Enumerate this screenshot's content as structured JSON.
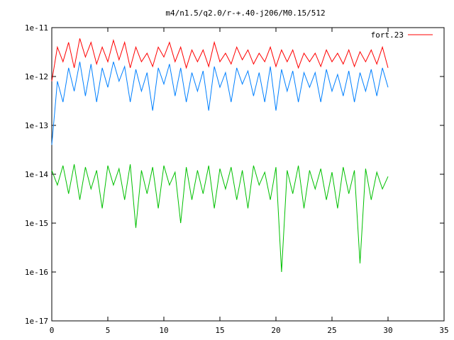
{
  "chart_data": {
    "type": "line",
    "title": "m4/n1.5/q2.0/r-+.40-j206/M0.15/512",
    "xlabel": "",
    "ylabel": "",
    "xlim": [
      0,
      35
    ],
    "ylim": [
      1e-17,
      1e-11
    ],
    "yscale": "log",
    "grid": false,
    "legend_position": "top-right",
    "x_ticks": [
      {
        "value": 0,
        "label": "0"
      },
      {
        "value": 5,
        "label": "5"
      },
      {
        "value": 10,
        "label": "10"
      },
      {
        "value": 15,
        "label": "15"
      },
      {
        "value": 20,
        "label": "20"
      },
      {
        "value": 25,
        "label": "25"
      },
      {
        "value": 30,
        "label": "30"
      },
      {
        "value": 35,
        "label": "35"
      }
    ],
    "y_ticks": [
      {
        "value": 1e-17,
        "label": "1e-17"
      },
      {
        "value": 1e-16,
        "label": "1e-16"
      },
      {
        "value": 1e-15,
        "label": "1e-15"
      },
      {
        "value": 1e-14,
        "label": "1e-14"
      },
      {
        "value": 1e-13,
        "label": "1e-13"
      },
      {
        "value": 1e-12,
        "label": "1e-12"
      },
      {
        "value": 1e-11,
        "label": "1e-11"
      }
    ],
    "series": [
      {
        "name": "fort.23",
        "color": "#ff0000",
        "x": [
          0,
          0.5,
          1,
          1.5,
          2,
          2.5,
          3,
          3.5,
          4,
          4.5,
          5,
          5.5,
          6,
          6.5,
          7,
          7.5,
          8,
          8.5,
          9,
          9.5,
          10,
          10.5,
          11,
          11.5,
          12,
          12.5,
          13,
          13.5,
          14,
          14.5,
          15,
          15.5,
          16,
          16.5,
          17,
          17.5,
          18,
          18.5,
          19,
          19.5,
          20,
          20.5,
          21,
          21.5,
          22,
          22.5,
          23,
          23.5,
          24,
          24.5,
          25,
          25.5,
          26,
          26.5,
          27,
          27.5,
          28,
          28.5,
          29,
          29.5,
          30
        ],
        "values": [
          8e-13,
          4e-12,
          2e-12,
          5e-12,
          1.5e-12,
          6e-12,
          2.5e-12,
          5e-12,
          1.8e-12,
          4e-12,
          2e-12,
          5.5e-12,
          2.2e-12,
          5e-12,
          1.5e-12,
          4e-12,
          2e-12,
          3e-12,
          1.6e-12,
          4e-12,
          2.5e-12,
          5e-12,
          2e-12,
          4e-12,
          1.5e-12,
          3.5e-12,
          2e-12,
          3.5e-12,
          1.6e-12,
          5e-12,
          2e-12,
          3e-12,
          1.8e-12,
          4e-12,
          2.2e-12,
          3.5e-12,
          1.8e-12,
          3e-12,
          2e-12,
          4e-12,
          1.6e-12,
          3.5e-12,
          2e-12,
          3.5e-12,
          1.5e-12,
          3e-12,
          2e-12,
          3e-12,
          1.6e-12,
          3.5e-12,
          2e-12,
          3e-12,
          1.8e-12,
          3.5e-12,
          1.6e-12,
          3.2e-12,
          2e-12,
          3.5e-12,
          1.8e-12,
          4e-12,
          1.5e-12
        ]
      },
      {
        "color": "#0080ff",
        "x": [
          0,
          0.5,
          1,
          1.5,
          2,
          2.5,
          3,
          3.5,
          4,
          4.5,
          5,
          5.5,
          6,
          6.5,
          7,
          7.5,
          8,
          8.5,
          9,
          9.5,
          10,
          10.5,
          11,
          11.5,
          12,
          12.5,
          13,
          13.5,
          14,
          14.5,
          15,
          15.5,
          16,
          16.5,
          17,
          17.5,
          18,
          18.5,
          19,
          19.5,
          20,
          20.5,
          21,
          21.5,
          22,
          22.5,
          23,
          23.5,
          24,
          24.5,
          25,
          25.5,
          26,
          26.5,
          27,
          27.5,
          28,
          28.5,
          29,
          29.5,
          30
        ],
        "values": [
          4e-14,
          8e-13,
          3e-13,
          1.5e-12,
          5e-13,
          2e-12,
          4e-13,
          1.8e-12,
          3e-13,
          1.5e-12,
          6e-13,
          2e-12,
          8e-13,
          1.6e-12,
          3e-13,
          1.4e-12,
          5e-13,
          1.2e-12,
          2e-13,
          1.5e-12,
          7e-13,
          1.8e-12,
          4e-13,
          1.5e-12,
          3e-13,
          1.2e-12,
          5e-13,
          1.3e-12,
          2e-13,
          1.6e-12,
          6e-13,
          1.2e-12,
          3e-13,
          1.5e-12,
          7e-13,
          1.3e-12,
          4e-13,
          1.2e-12,
          3e-13,
          1.6e-12,
          2e-13,
          1.4e-12,
          5e-13,
          1.3e-12,
          3e-13,
          1.2e-12,
          6e-13,
          1.2e-12,
          3e-13,
          1.4e-12,
          5e-13,
          1.1e-12,
          4e-13,
          1.3e-12,
          3e-13,
          1.2e-12,
          5e-13,
          1.4e-12,
          4e-13,
          1.5e-12,
          6e-13
        ]
      },
      {
        "color": "#00c000",
        "x": [
          0,
          0.5,
          1,
          1.5,
          2,
          2.5,
          3,
          3.5,
          4,
          4.5,
          5,
          5.5,
          6,
          6.5,
          7,
          7.5,
          8,
          8.5,
          9,
          9.5,
          10,
          10.5,
          11,
          11.5,
          12,
          12.5,
          13,
          13.5,
          14,
          14.5,
          15,
          15.5,
          16,
          16.5,
          17,
          17.5,
          18,
          18.5,
          19,
          19.5,
          20,
          20.5,
          21,
          21.5,
          22,
          22.5,
          23,
          23.5,
          24,
          24.5,
          25,
          25.5,
          26,
          26.5,
          27,
          27.5,
          28,
          28.5,
          29,
          29.5,
          30
        ],
        "values": [
          1.2e-14,
          6e-15,
          1.5e-14,
          4e-15,
          1.6e-14,
          3e-15,
          1.4e-14,
          5e-15,
          1.2e-14,
          2e-15,
          1.5e-14,
          6e-15,
          1.3e-14,
          3e-15,
          1.6e-14,
          8e-16,
          1.2e-14,
          4e-15,
          1.4e-14,
          2e-15,
          1.5e-14,
          6e-15,
          1.1e-14,
          1e-15,
          1.4e-14,
          3e-15,
          1.2e-14,
          4e-15,
          1.5e-14,
          2e-15,
          1.3e-14,
          5e-15,
          1.4e-14,
          3e-15,
          1.2e-14,
          2e-15,
          1.5e-14,
          6e-15,
          1.1e-14,
          3e-15,
          1.4e-14,
          1e-16,
          1.2e-14,
          4e-15,
          1.5e-14,
          2e-15,
          1.2e-14,
          5e-15,
          1.3e-14,
          3e-15,
          1.1e-14,
          2e-15,
          1.4e-14,
          4e-15,
          1.2e-14,
          1.5e-16,
          1.3e-14,
          3e-15,
          1.1e-14,
          5e-15,
          9e-15
        ]
      }
    ]
  }
}
